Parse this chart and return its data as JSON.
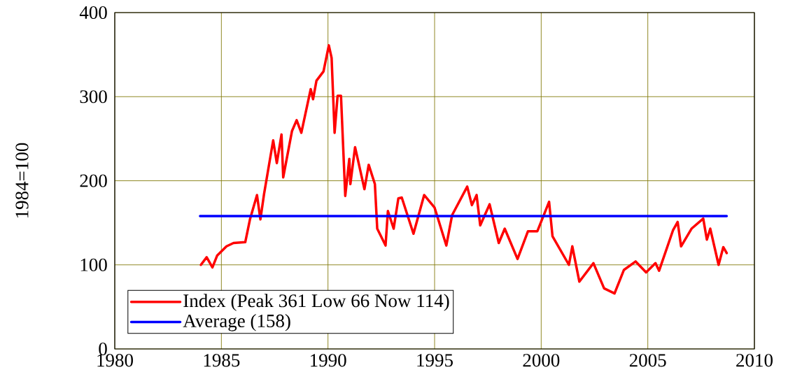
{
  "chart_data": {
    "type": "line",
    "ylabel": "1984=100",
    "xlim": [
      1980,
      2010
    ],
    "ylim": [
      0,
      400
    ],
    "xticks": [
      1980,
      1985,
      1990,
      1995,
      2000,
      2005,
      2010
    ],
    "yticks": [
      0,
      100,
      200,
      300,
      400
    ],
    "grid": true,
    "legend": "bottom left",
    "line_style": "solid",
    "marker": "none",
    "series": [
      {
        "name": "Index (Peak 361 Low 66 Now 114)",
        "color": "#ff0000",
        "x": [
          1984.04,
          1984.31,
          1984.58,
          1984.8,
          1985.24,
          1985.57,
          1986.12,
          1986.34,
          1986.67,
          1986.83,
          1987.0,
          1987.43,
          1987.6,
          1987.82,
          1987.9,
          1988.31,
          1988.53,
          1988.75,
          1989.19,
          1989.3,
          1989.46,
          1989.79,
          1990.04,
          1990.17,
          1990.31,
          1990.45,
          1990.61,
          1990.81,
          1991.0,
          1991.05,
          1991.27,
          1991.71,
          1991.91,
          1992.2,
          1992.31,
          1992.7,
          1992.81,
          1993.08,
          1993.3,
          1993.46,
          1994.01,
          1994.51,
          1995.0,
          1995.55,
          1995.82,
          1996.53,
          1996.75,
          1996.97,
          1997.14,
          1997.58,
          1998.01,
          1998.29,
          1998.89,
          1999.38,
          1999.82,
          2000.37,
          2000.53,
          2001.3,
          2001.46,
          2001.79,
          2002.45,
          2002.95,
          2003.44,
          2003.88,
          2004.43,
          2004.92,
          2005.36,
          2005.53,
          2006.18,
          2006.4,
          2006.56,
          2007.05,
          2007.6,
          2007.77,
          2007.93,
          2008.32,
          2008.54,
          2008.7
        ],
        "values": [
          100,
          109,
          97,
          111,
          122,
          126,
          127,
          154,
          183,
          154,
          184,
          248,
          221,
          255,
          204,
          259,
          272,
          257,
          309,
          297,
          319,
          330,
          361,
          346,
          257,
          301,
          301,
          182,
          226,
          196,
          240,
          190,
          219,
          196,
          143,
          123,
          164,
          143,
          179,
          180,
          137,
          183,
          168,
          123,
          159,
          193,
          171,
          183,
          147,
          172,
          126,
          143,
          107,
          140,
          140,
          175,
          134,
          100,
          122,
          80,
          102,
          72,
          66,
          94,
          104,
          91,
          102,
          93,
          141,
          151,
          122,
          143,
          155,
          130,
          143,
          100,
          121,
          114
        ]
      },
      {
        "name": "Average (158)",
        "color": "#0000ff",
        "x": [
          1984.0,
          2008.7
        ],
        "values": [
          158,
          158
        ]
      }
    ]
  }
}
